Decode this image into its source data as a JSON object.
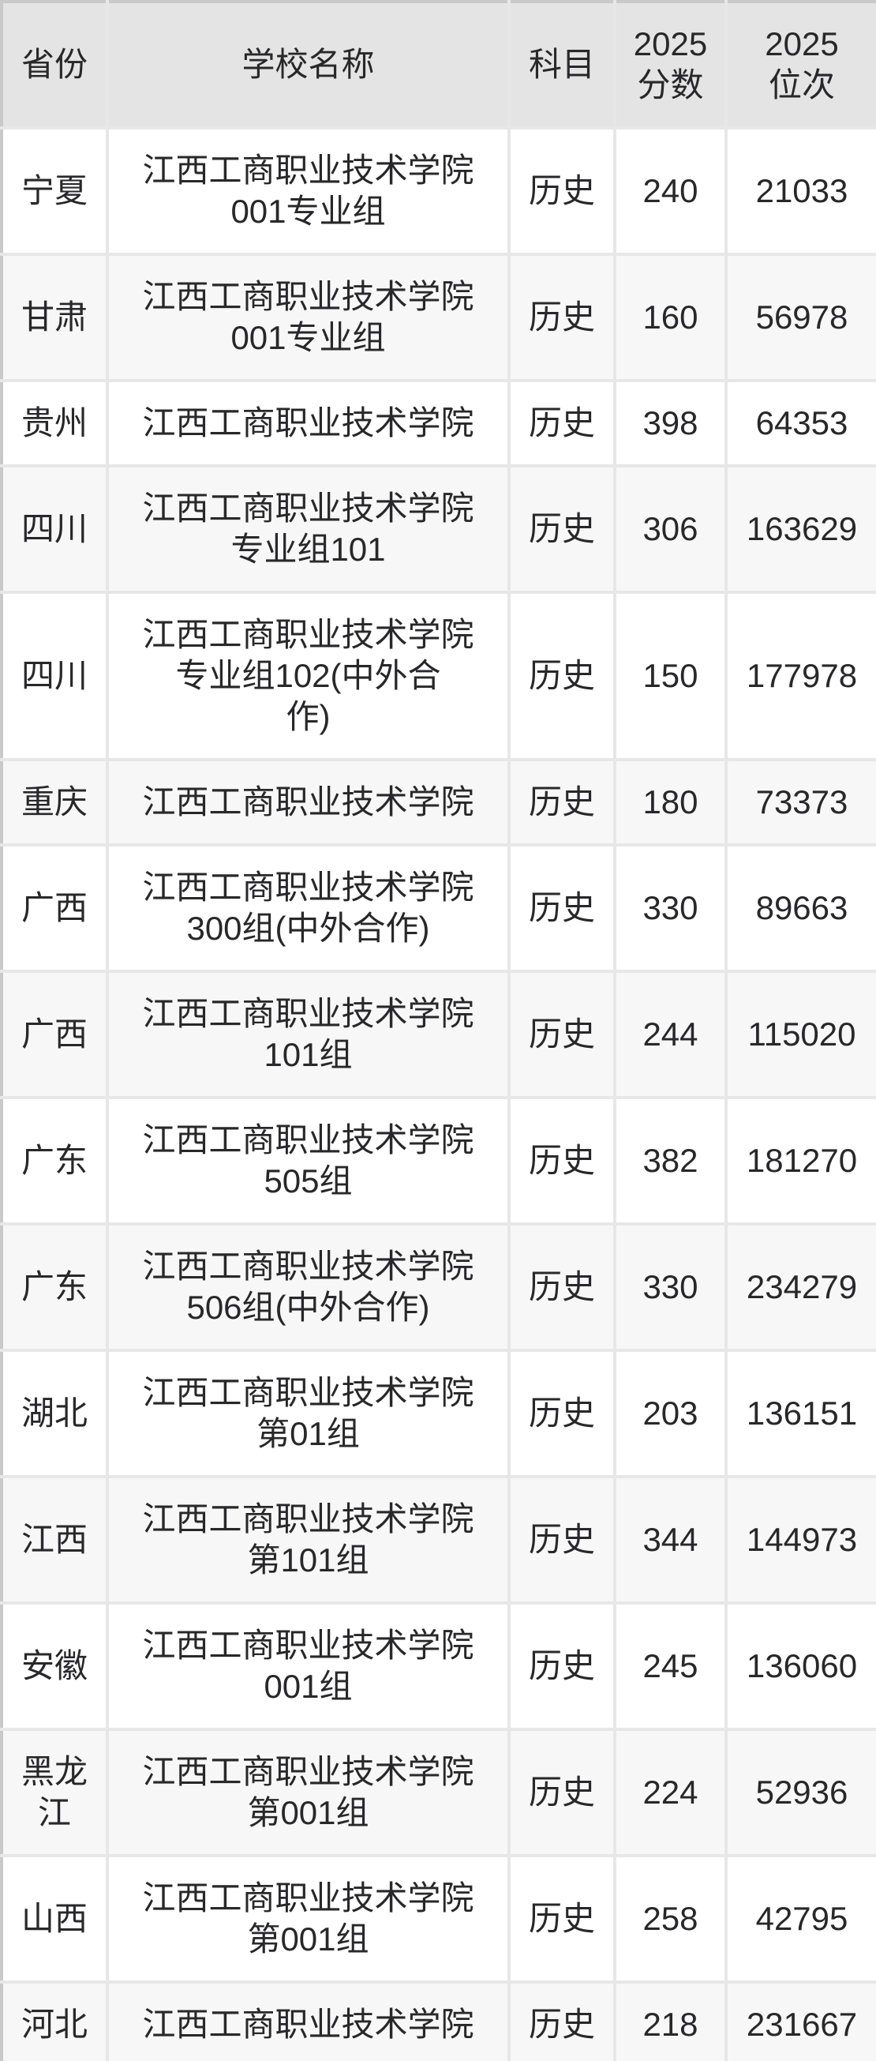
{
  "colors": {
    "header_bg": "#e4e4e4",
    "row_alt_bg": "#f7f7f7",
    "grid_line": "#e7e7e7",
    "outer_border": "#c9c9c9",
    "text": "#28282a"
  },
  "table": {
    "header": {
      "province": "省份",
      "school": "学校名称",
      "subject": "科目",
      "score_lines": [
        "2025",
        "分数"
      ],
      "rank_lines": [
        "2025",
        "位次"
      ]
    },
    "rows": [
      {
        "province": "宁夏",
        "school_lines": [
          "江西工商职业技术学院",
          "001专业组"
        ],
        "subject": "历史",
        "score": "240",
        "rank": "21033"
      },
      {
        "province": "甘肃",
        "school_lines": [
          "江西工商职业技术学院",
          "001专业组"
        ],
        "subject": "历史",
        "score": "160",
        "rank": "56978"
      },
      {
        "province": "贵州",
        "school_lines": [
          "江西工商职业技术学院"
        ],
        "subject": "历史",
        "score": "398",
        "rank": "64353"
      },
      {
        "province": "四川",
        "school_lines": [
          "江西工商职业技术学院",
          "专业组101"
        ],
        "subject": "历史",
        "score": "306",
        "rank": "163629"
      },
      {
        "province": "四川",
        "school_lines": [
          "江西工商职业技术学院",
          "专业组102(中外合",
          "作)"
        ],
        "subject": "历史",
        "score": "150",
        "rank": "177978"
      },
      {
        "province": "重庆",
        "school_lines": [
          "江西工商职业技术学院"
        ],
        "subject": "历史",
        "score": "180",
        "rank": "73373"
      },
      {
        "province": "广西",
        "school_lines": [
          "江西工商职业技术学院",
          "300组(中外合作)"
        ],
        "subject": "历史",
        "score": "330",
        "rank": "89663"
      },
      {
        "province": "广西",
        "school_lines": [
          "江西工商职业技术学院",
          "101组"
        ],
        "subject": "历史",
        "score": "244",
        "rank": "115020"
      },
      {
        "province": "广东",
        "school_lines": [
          "江西工商职业技术学院",
          "505组"
        ],
        "subject": "历史",
        "score": "382",
        "rank": "181270"
      },
      {
        "province": "广东",
        "school_lines": [
          "江西工商职业技术学院",
          "506组(中外合作)"
        ],
        "subject": "历史",
        "score": "330",
        "rank": "234279"
      },
      {
        "province": "湖北",
        "school_lines": [
          "江西工商职业技术学院",
          "第01组"
        ],
        "subject": "历史",
        "score": "203",
        "rank": "136151"
      },
      {
        "province": "江西",
        "school_lines": [
          "江西工商职业技术学院",
          "第101组"
        ],
        "subject": "历史",
        "score": "344",
        "rank": "144973"
      },
      {
        "province": "安徽",
        "school_lines": [
          "江西工商职业技术学院",
          "001组"
        ],
        "subject": "历史",
        "score": "245",
        "rank": "136060"
      },
      {
        "province": "黑龙江",
        "school_lines": [
          "江西工商职业技术学院",
          "第001组"
        ],
        "subject": "历史",
        "score": "224",
        "rank": "52936"
      },
      {
        "province": "山西",
        "school_lines": [
          "江西工商职业技术学院",
          "第001组"
        ],
        "subject": "历史",
        "score": "258",
        "rank": "42795"
      },
      {
        "province": "河北",
        "school_lines": [
          "江西工商职业技术学院"
        ],
        "subject": "历史",
        "score": "218",
        "rank": "231667"
      }
    ]
  }
}
